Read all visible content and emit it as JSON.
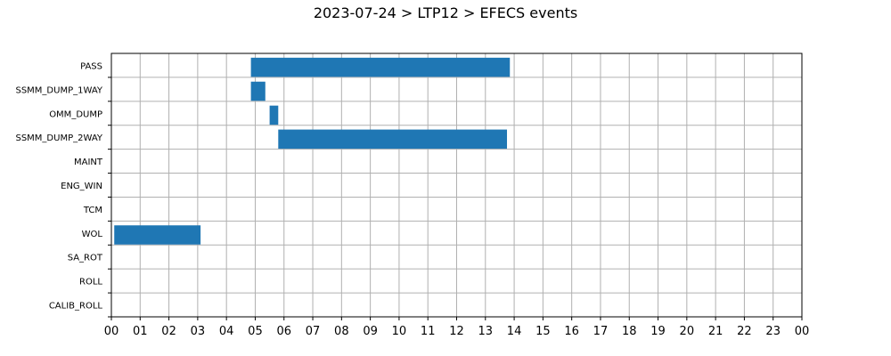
{
  "chart_data": {
    "type": "gantt",
    "title": "2023-07-24 > LTP12 > EFECS events",
    "xlabel": "",
    "ylabel": "",
    "x_ticks": [
      "00",
      "01",
      "02",
      "03",
      "04",
      "05",
      "06",
      "07",
      "08",
      "09",
      "10",
      "11",
      "12",
      "13",
      "14",
      "15",
      "16",
      "17",
      "18",
      "19",
      "20",
      "21",
      "22",
      "23",
      "00"
    ],
    "xlim": [
      0,
      24
    ],
    "categories": [
      "PASS",
      "SSMM_DUMP_1WAY",
      "OMM_DUMP",
      "SSMM_DUMP_2WAY",
      "MAINT",
      "ENG_WIN",
      "TCM",
      "WOL",
      "SA_ROT",
      "ROLL",
      "CALIB_ROLL"
    ],
    "grid": true,
    "bar_color": "#1f77b4",
    "events": [
      {
        "category": "PASS",
        "start": 4.85,
        "end": 13.85
      },
      {
        "category": "SSMM_DUMP_1WAY",
        "start": 4.85,
        "end": 5.35
      },
      {
        "category": "OMM_DUMP",
        "start": 5.5,
        "end": 5.8
      },
      {
        "category": "SSMM_DUMP_2WAY",
        "start": 5.8,
        "end": 13.75
      },
      {
        "category": "WOL",
        "start": 0.1,
        "end": 3.1
      }
    ]
  }
}
